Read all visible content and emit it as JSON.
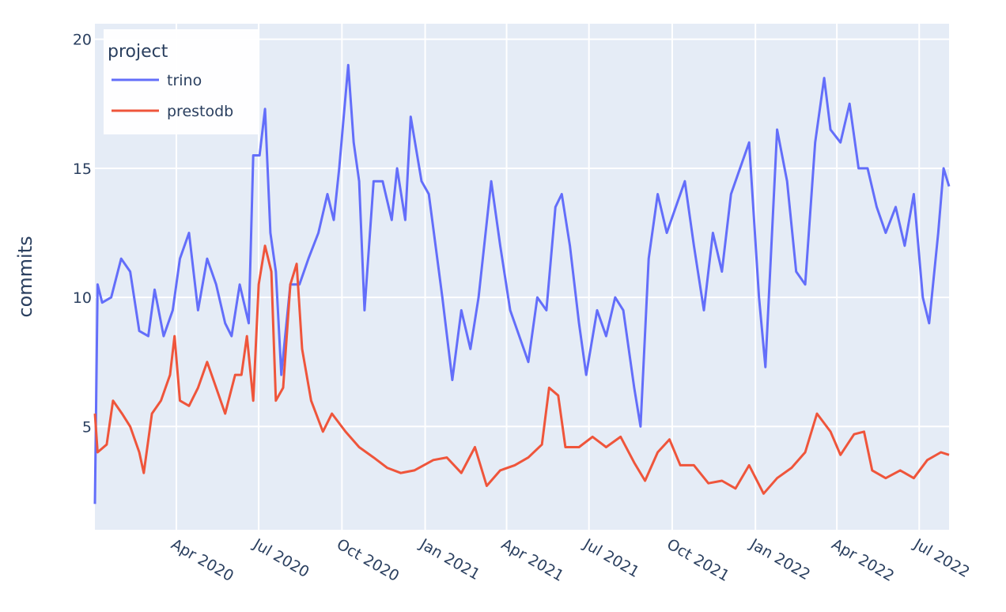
{
  "chart_data": {
    "type": "line",
    "title": "",
    "xlabel": "",
    "ylabel": "commits",
    "xlim": [
      "2020-01-02",
      "2022-08-03"
    ],
    "ylim": [
      1.0,
      20.6
    ],
    "grid": true,
    "legend": {
      "title": "project",
      "placement": "top-left"
    },
    "x_ticks": [
      {
        "date": "2020-04-01",
        "label": "Apr 2020"
      },
      {
        "date": "2020-07-01",
        "label": "Jul 2020"
      },
      {
        "date": "2020-10-01",
        "label": "Oct 2020"
      },
      {
        "date": "2021-01-01",
        "label": "Jan 2021"
      },
      {
        "date": "2021-04-01",
        "label": "Apr 2021"
      },
      {
        "date": "2021-07-01",
        "label": "Jul 2021"
      },
      {
        "date": "2021-10-01",
        "label": "Oct 2021"
      },
      {
        "date": "2022-01-01",
        "label": "Jan 2022"
      },
      {
        "date": "2022-04-01",
        "label": "Apr 2022"
      },
      {
        "date": "2022-07-01",
        "label": "Jul 2022"
      }
    ],
    "y_ticks": [
      {
        "value": 5,
        "label": "5"
      },
      {
        "value": 10,
        "label": "10"
      },
      {
        "value": 15,
        "label": "15"
      },
      {
        "value": 20,
        "label": "20"
      }
    ],
    "series": [
      {
        "name": "trino",
        "color": "#636efa",
        "points": [
          [
            "2020-01-02",
            2
          ],
          [
            "2020-01-05",
            10.5
          ],
          [
            "2020-01-10",
            9.8
          ],
          [
            "2020-01-20",
            10
          ],
          [
            "2020-01-31",
            11.5
          ],
          [
            "2020-02-10",
            11
          ],
          [
            "2020-02-20",
            8.7
          ],
          [
            "2020-03-01",
            8.5
          ],
          [
            "2020-03-08",
            10.3
          ],
          [
            "2020-03-18",
            8.5
          ],
          [
            "2020-03-28",
            9.5
          ],
          [
            "2020-04-05",
            11.5
          ],
          [
            "2020-04-15",
            12.5
          ],
          [
            "2020-04-25",
            9.5
          ],
          [
            "2020-05-05",
            11.5
          ],
          [
            "2020-05-15",
            10.5
          ],
          [
            "2020-05-25",
            9
          ],
          [
            "2020-06-01",
            8.5
          ],
          [
            "2020-06-10",
            10.5
          ],
          [
            "2020-06-20",
            9
          ],
          [
            "2020-06-25",
            15.5
          ],
          [
            "2020-07-02",
            15.5
          ],
          [
            "2020-07-08",
            17.3
          ],
          [
            "2020-07-14",
            12.5
          ],
          [
            "2020-07-20",
            11
          ],
          [
            "2020-07-26",
            7
          ],
          [
            "2020-08-05",
            10.5
          ],
          [
            "2020-08-15",
            10.5
          ],
          [
            "2020-08-25",
            11.5
          ],
          [
            "2020-09-05",
            12.5
          ],
          [
            "2020-09-15",
            14
          ],
          [
            "2020-09-22",
            13
          ],
          [
            "2020-09-28",
            15
          ],
          [
            "2020-10-08",
            19
          ],
          [
            "2020-10-14",
            16
          ],
          [
            "2020-10-20",
            14.5
          ],
          [
            "2020-10-26",
            9.5
          ],
          [
            "2020-11-05",
            14.5
          ],
          [
            "2020-11-15",
            14.5
          ],
          [
            "2020-11-25",
            13
          ],
          [
            "2020-12-01",
            15
          ],
          [
            "2020-12-10",
            13
          ],
          [
            "2020-12-16",
            17
          ],
          [
            "2020-12-28",
            14.5
          ],
          [
            "2021-01-05",
            14
          ],
          [
            "2021-01-20",
            10
          ],
          [
            "2021-01-31",
            6.8
          ],
          [
            "2021-02-10",
            9.5
          ],
          [
            "2021-02-20",
            8
          ],
          [
            "2021-03-01",
            10
          ],
          [
            "2021-03-15",
            14.5
          ],
          [
            "2021-03-25",
            12
          ],
          [
            "2021-04-05",
            9.5
          ],
          [
            "2021-04-15",
            8.5
          ],
          [
            "2021-04-25",
            7.5
          ],
          [
            "2021-05-05",
            10
          ],
          [
            "2021-05-15",
            9.5
          ],
          [
            "2021-05-25",
            13.5
          ],
          [
            "2021-06-01",
            14
          ],
          [
            "2021-06-10",
            12
          ],
          [
            "2021-06-20",
            9
          ],
          [
            "2021-06-28",
            7
          ],
          [
            "2021-07-10",
            9.5
          ],
          [
            "2021-07-20",
            8.5
          ],
          [
            "2021-07-30",
            10
          ],
          [
            "2021-08-08",
            9.5
          ],
          [
            "2021-08-20",
            6.5
          ],
          [
            "2021-08-27",
            5
          ],
          [
            "2021-09-05",
            11.5
          ],
          [
            "2021-09-15",
            14
          ],
          [
            "2021-09-25",
            12.5
          ],
          [
            "2021-10-05",
            13.5
          ],
          [
            "2021-10-15",
            14.5
          ],
          [
            "2021-10-25",
            12
          ],
          [
            "2021-11-05",
            9.5
          ],
          [
            "2021-11-15",
            12.5
          ],
          [
            "2021-11-25",
            11
          ],
          [
            "2021-12-05",
            14
          ],
          [
            "2021-12-15",
            15
          ],
          [
            "2021-12-25",
            16
          ],
          [
            "2022-01-05",
            10
          ],
          [
            "2022-01-12",
            7.3
          ],
          [
            "2022-01-25",
            16.5
          ],
          [
            "2022-02-05",
            14.5
          ],
          [
            "2022-02-15",
            11
          ],
          [
            "2022-02-25",
            10.5
          ],
          [
            "2022-03-08",
            16
          ],
          [
            "2022-03-18",
            18.5
          ],
          [
            "2022-03-25",
            16.5
          ],
          [
            "2022-04-05",
            16
          ],
          [
            "2022-04-15",
            17.5
          ],
          [
            "2022-04-25",
            15
          ],
          [
            "2022-05-05",
            15
          ],
          [
            "2022-05-15",
            13.5
          ],
          [
            "2022-05-25",
            12.5
          ],
          [
            "2022-06-05",
            13.5
          ],
          [
            "2022-06-15",
            12
          ],
          [
            "2022-06-25",
            14
          ],
          [
            "2022-07-05",
            10
          ],
          [
            "2022-07-12",
            9
          ],
          [
            "2022-07-22",
            12.5
          ],
          [
            "2022-07-28",
            15
          ],
          [
            "2022-08-03",
            14.3
          ]
        ]
      },
      {
        "name": "prestodb",
        "color": "#ef553b",
        "points": [
          [
            "2020-01-02",
            5.5
          ],
          [
            "2020-01-05",
            4
          ],
          [
            "2020-01-15",
            4.3
          ],
          [
            "2020-01-22",
            6
          ],
          [
            "2020-02-01",
            5.5
          ],
          [
            "2020-02-10",
            5
          ],
          [
            "2020-02-20",
            4
          ],
          [
            "2020-02-25",
            3.2
          ],
          [
            "2020-03-05",
            5.5
          ],
          [
            "2020-03-15",
            6
          ],
          [
            "2020-03-25",
            7
          ],
          [
            "2020-03-30",
            8.5
          ],
          [
            "2020-04-05",
            6
          ],
          [
            "2020-04-15",
            5.8
          ],
          [
            "2020-04-25",
            6.5
          ],
          [
            "2020-05-05",
            7.5
          ],
          [
            "2020-05-15",
            6.5
          ],
          [
            "2020-05-25",
            5.5
          ],
          [
            "2020-06-05",
            7
          ],
          [
            "2020-06-12",
            7
          ],
          [
            "2020-06-18",
            8.5
          ],
          [
            "2020-06-25",
            6
          ],
          [
            "2020-07-01",
            10.5
          ],
          [
            "2020-07-08",
            12
          ],
          [
            "2020-07-15",
            11
          ],
          [
            "2020-07-20",
            6
          ],
          [
            "2020-07-28",
            6.5
          ],
          [
            "2020-08-05",
            10.5
          ],
          [
            "2020-08-12",
            11.3
          ],
          [
            "2020-08-18",
            8
          ],
          [
            "2020-08-28",
            6
          ],
          [
            "2020-09-10",
            4.8
          ],
          [
            "2020-09-20",
            5.5
          ],
          [
            "2020-10-05",
            4.8
          ],
          [
            "2020-10-20",
            4.2
          ],
          [
            "2020-11-05",
            3.8
          ],
          [
            "2020-11-20",
            3.4
          ],
          [
            "2020-12-05",
            3.2
          ],
          [
            "2020-12-20",
            3.3
          ],
          [
            "2021-01-10",
            3.7
          ],
          [
            "2021-01-25",
            3.8
          ],
          [
            "2021-02-10",
            3.2
          ],
          [
            "2021-02-25",
            4.2
          ],
          [
            "2021-03-10",
            2.7
          ],
          [
            "2021-03-25",
            3.3
          ],
          [
            "2021-04-10",
            3.5
          ],
          [
            "2021-04-25",
            3.8
          ],
          [
            "2021-05-10",
            4.3
          ],
          [
            "2021-05-18",
            6.5
          ],
          [
            "2021-05-28",
            6.2
          ],
          [
            "2021-06-05",
            4.2
          ],
          [
            "2021-06-20",
            4.2
          ],
          [
            "2021-07-05",
            4.6
          ],
          [
            "2021-07-20",
            4.2
          ],
          [
            "2021-08-05",
            4.6
          ],
          [
            "2021-08-20",
            3.6
          ],
          [
            "2021-09-01",
            2.9
          ],
          [
            "2021-09-15",
            4
          ],
          [
            "2021-09-28",
            4.5
          ],
          [
            "2021-10-10",
            3.5
          ],
          [
            "2021-10-25",
            3.5
          ],
          [
            "2021-11-10",
            2.8
          ],
          [
            "2021-11-25",
            2.9
          ],
          [
            "2021-12-10",
            2.6
          ],
          [
            "2021-12-25",
            3.5
          ],
          [
            "2022-01-10",
            2.4
          ],
          [
            "2022-01-25",
            3
          ],
          [
            "2022-02-10",
            3.4
          ],
          [
            "2022-02-25",
            4
          ],
          [
            "2022-03-10",
            5.5
          ],
          [
            "2022-03-25",
            4.8
          ],
          [
            "2022-04-05",
            3.9
          ],
          [
            "2022-04-20",
            4.7
          ],
          [
            "2022-05-01",
            4.8
          ],
          [
            "2022-05-10",
            3.3
          ],
          [
            "2022-05-25",
            3
          ],
          [
            "2022-06-10",
            3.3
          ],
          [
            "2022-06-25",
            3
          ],
          [
            "2022-07-10",
            3.7
          ],
          [
            "2022-07-25",
            4
          ],
          [
            "2022-08-03",
            3.9
          ]
        ]
      }
    ]
  }
}
